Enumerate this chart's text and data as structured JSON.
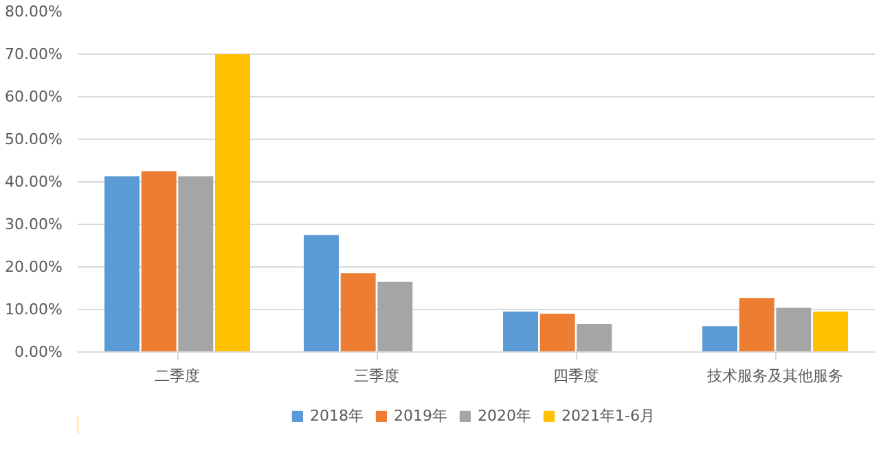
{
  "chart_data": {
    "type": "bar",
    "categories": [
      "二季度",
      "三季度",
      "四季度",
      "技术服务及其他服务"
    ],
    "series": [
      {
        "name": "2018年",
        "color": "#5b9bd5",
        "values": [
          41.3,
          27.5,
          9.5,
          6.1
        ]
      },
      {
        "name": "2019年",
        "color": "#ed7d31",
        "values": [
          42.5,
          18.5,
          9.0,
          12.7
        ]
      },
      {
        "name": "2020年",
        "color": "#a5a5a5",
        "values": [
          41.3,
          16.5,
          6.6,
          10.4
        ]
      },
      {
        "name": "2021年1-6月",
        "color": "#ffc000",
        "values": [
          70.0,
          null,
          null,
          9.5
        ]
      }
    ],
    "ylim": [
      0,
      80
    ],
    "yticks": [
      {
        "value": 0,
        "label": "0.00%"
      },
      {
        "value": 10,
        "label": "10.00%"
      },
      {
        "value": 20,
        "label": "20.00%"
      },
      {
        "value": 30,
        "label": "30.00%"
      },
      {
        "value": 40,
        "label": "40.00%"
      },
      {
        "value": 50,
        "label": "50.00%"
      },
      {
        "value": 60,
        "label": "60.00%"
      },
      {
        "value": 70,
        "label": "70.00%"
      },
      {
        "value": 80,
        "label": "80.00%"
      }
    ],
    "grid": "y",
    "legend": "bottom"
  }
}
